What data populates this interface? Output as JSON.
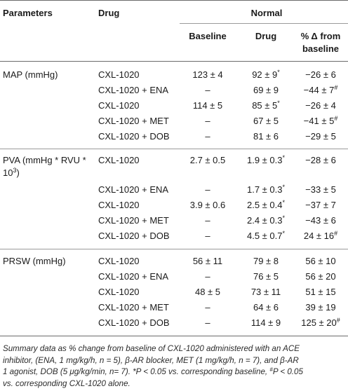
{
  "table": {
    "header": {
      "parameters": "Parameters",
      "drug": "Drug",
      "normal": "Normal",
      "baseline": "Baseline",
      "drug_col": "Drug",
      "pct_line1": "% Δ from",
      "pct_line2": "baseline"
    },
    "sections": [
      {
        "label": "MAP (mmHg)",
        "rows": [
          {
            "drug": "CXL-1020",
            "baseline": "123 ± 4",
            "drug_val": "92 ± 9",
            "drug_sup": "*",
            "pct": "−26 ± 6",
            "pct_sup": ""
          },
          {
            "drug": "CXL-1020 + ENA",
            "baseline": "–",
            "drug_val": "69 ± 9",
            "drug_sup": "",
            "pct": "−44 ± 7",
            "pct_sup": "#"
          },
          {
            "drug": "CXL-1020",
            "baseline": "114 ± 5",
            "drug_val": "85 ± 5",
            "drug_sup": "*",
            "pct": "−26 ± 4",
            "pct_sup": ""
          },
          {
            "drug": "CXL-1020 + MET",
            "baseline": "–",
            "drug_val": "67 ± 5",
            "drug_sup": "",
            "pct": "−41 ± 5",
            "pct_sup": "#"
          },
          {
            "drug": "CXL-1020 + DOB",
            "baseline": "–",
            "drug_val": "81 ± 6",
            "drug_sup": "",
            "pct": "−29 ± 5",
            "pct_sup": ""
          }
        ]
      },
      {
        "label": "PVA (mmHg * RVU *",
        "label_line2": "10",
        "label_line2_sup": "3",
        "label_line2_end": ")",
        "rows": [
          {
            "drug": "CXL-1020",
            "baseline": "2.7 ± 0.5",
            "drug_val": "1.9 ± 0.3",
            "drug_sup": "*",
            "pct": "−28 ± 6",
            "pct_sup": ""
          },
          {
            "drug": "CXL-1020 + ENA",
            "baseline": "–",
            "drug_val": "1.7 ± 0.3",
            "drug_sup": "*",
            "pct": "−33 ± 5",
            "pct_sup": ""
          },
          {
            "drug": "CXL-1020",
            "baseline": "3.9 ± 0.6",
            "drug_val": "2.5 ± 0.4",
            "drug_sup": "*",
            "pct": "−37 ± 7",
            "pct_sup": ""
          },
          {
            "drug": "CXL-1020 + MET",
            "baseline": "–",
            "drug_val": "2.4 ± 0.3",
            "drug_sup": "*",
            "pct": "−43 ± 6",
            "pct_sup": ""
          },
          {
            "drug": "CXL-1020 + DOB",
            "baseline": "–",
            "drug_val": "4.5 ± 0.7",
            "drug_sup": "*",
            "pct": "24 ± 16",
            "pct_sup": "#"
          }
        ]
      },
      {
        "label": "PRSW (mmHg)",
        "rows": [
          {
            "drug": "CXL-1020",
            "baseline": "56 ± 11",
            "drug_val": "79 ± 8",
            "drug_sup": "",
            "pct": "56 ± 10",
            "pct_sup": ""
          },
          {
            "drug": "CXL-1020 + ENA",
            "baseline": "–",
            "drug_val": "76 ± 5",
            "drug_sup": "",
            "pct": "56 ± 20",
            "pct_sup": ""
          },
          {
            "drug": "CXL-1020",
            "baseline": "48 ± 5",
            "drug_val": "73 ± 11",
            "drug_sup": "",
            "pct": "51 ± 15",
            "pct_sup": ""
          },
          {
            "drug": "CXL-1020 + MET",
            "baseline": "–",
            "drug_val": "64 ± 6",
            "drug_sup": "",
            "pct": "39 ± 19",
            "pct_sup": ""
          },
          {
            "drug": "CXL-1020 + DOB",
            "baseline": "–",
            "drug_val": "114 ± 9",
            "drug_sup": "",
            "pct": "125 ± 20",
            "pct_sup": "#"
          }
        ]
      }
    ]
  },
  "caption": {
    "line1": "Summary data as % change from baseline of CXL-1020 administered with an ACE",
    "line2": "inhibitor, (ENA, 1 mg/kg/h, n = 5), β-AR blocker, MET (1 mg/kg/h, n = 7), and β-AR",
    "line3": "1 agonist, DOB (5 μg/kg/min, n= 7). *P < 0.05 vs. corresponding baseline,",
    "line3_sup": "#",
    "line3_end": "P < 0.05",
    "line4": "vs. corresponding CXL-1020 alone."
  }
}
